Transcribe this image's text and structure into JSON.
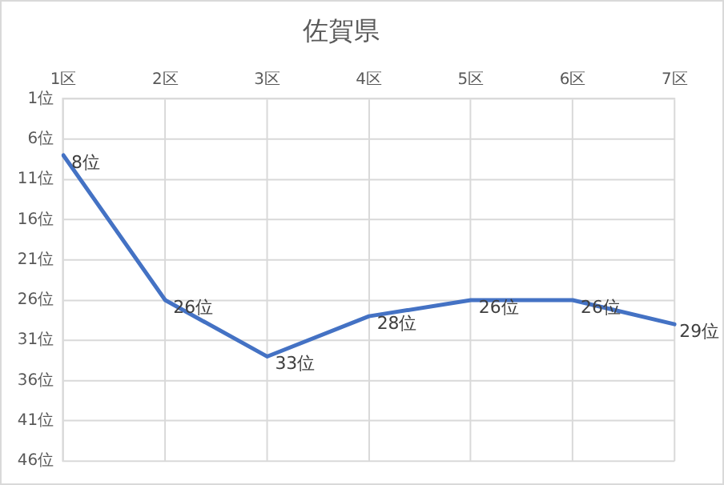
{
  "chart_data": {
    "type": "line",
    "title": "佐賀県",
    "categories": [
      "1区",
      "2区",
      "3区",
      "4区",
      "5区",
      "6区",
      "7区"
    ],
    "series": [
      {
        "color": "#4472c4",
        "values": [
          8,
          26,
          33,
          28,
          26,
          26,
          29
        ],
        "value_labels": [
          "8位",
          "26位",
          "33位",
          "28位",
          "26位",
          "26位",
          "29位"
        ]
      }
    ],
    "ylim": [
      46,
      1
    ],
    "yticks": [
      {
        "value": 1,
        "label": "1位"
      },
      {
        "value": 6,
        "label": "6位"
      },
      {
        "value": 11,
        "label": "11位"
      },
      {
        "value": 16,
        "label": "16位"
      },
      {
        "value": 21,
        "label": "21位"
      },
      {
        "value": 26,
        "label": "26位"
      },
      {
        "value": 31,
        "label": "31位"
      },
      {
        "value": 36,
        "label": "36位"
      },
      {
        "value": 41,
        "label": "41位"
      },
      {
        "value": 46,
        "label": "46位"
      }
    ],
    "grid": true,
    "legend": false,
    "marker": "none",
    "line_style": "solid"
  }
}
